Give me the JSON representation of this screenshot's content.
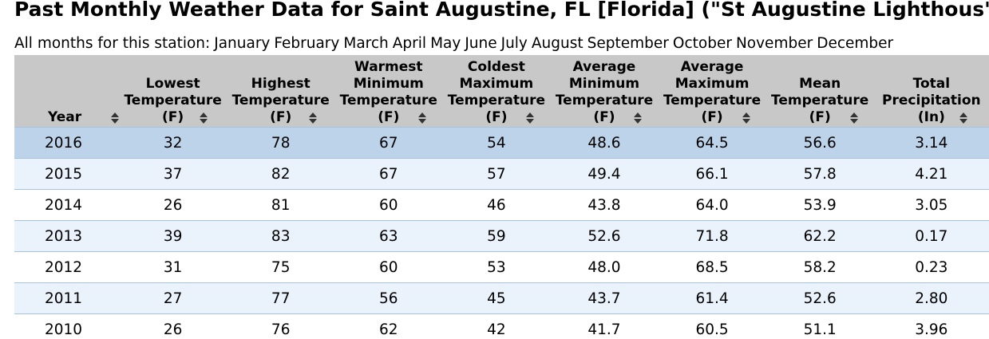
{
  "page": {
    "title": "Past Monthly Weather Data for Saint Augustine, FL [Florida] (\"St Augustine Lighthous\")",
    "months_label": "All months for this station:",
    "months": [
      "January",
      "February",
      "March",
      "April",
      "May",
      "June",
      "July",
      "August",
      "September",
      "October",
      "November",
      "December"
    ]
  },
  "table": {
    "columns": [
      {
        "lines": [
          "Year"
        ]
      },
      {
        "lines": [
          "Lowest",
          "Temperature",
          "(F)"
        ]
      },
      {
        "lines": [
          "Highest",
          "Temperature",
          "(F)"
        ]
      },
      {
        "lines": [
          "Warmest",
          "Minimum",
          "Temperature",
          "(F)"
        ]
      },
      {
        "lines": [
          "Coldest",
          "Maximum",
          "Temperature",
          "(F)"
        ]
      },
      {
        "lines": [
          "Average",
          "Minimum",
          "Temperature",
          "(F)"
        ]
      },
      {
        "lines": [
          "Average",
          "Maximum",
          "Temperature",
          "(F)"
        ]
      },
      {
        "lines": [
          "Mean",
          "Temperature",
          "(F)"
        ]
      },
      {
        "lines": [
          "Total",
          "Precipitation",
          "(In)"
        ]
      }
    ],
    "rows": [
      [
        "2016",
        "32",
        "78",
        "67",
        "54",
        "48.6",
        "64.5",
        "56.6",
        "3.14"
      ],
      [
        "2015",
        "37",
        "82",
        "67",
        "57",
        "49.4",
        "66.1",
        "57.8",
        "4.21"
      ],
      [
        "2014",
        "26",
        "81",
        "60",
        "46",
        "43.8",
        "64.0",
        "53.9",
        "3.05"
      ],
      [
        "2013",
        "39",
        "83",
        "63",
        "59",
        "52.6",
        "71.8",
        "62.2",
        "0.17"
      ],
      [
        "2012",
        "31",
        "75",
        "60",
        "53",
        "48.0",
        "68.5",
        "58.2",
        "0.23"
      ],
      [
        "2011",
        "27",
        "77",
        "56",
        "45",
        "43.7",
        "61.4",
        "52.6",
        "2.80"
      ],
      [
        "2010",
        "26",
        "76",
        "62",
        "42",
        "41.7",
        "60.5",
        "51.1",
        "3.96"
      ]
    ]
  },
  "colors": {
    "header_bg": "#c8c8c8",
    "selected_row_bg": "#bcd3ea",
    "alt_row_bg": "#eaf3fc",
    "row_border": "#a9c2dd"
  },
  "icons": {
    "sort": "sort-up-down-icon"
  }
}
